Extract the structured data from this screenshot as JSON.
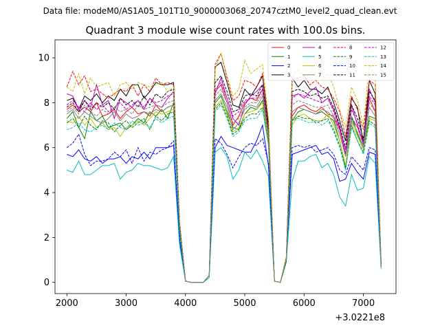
{
  "chart_data": {
    "type": "line",
    "suptitle": "Data file: modeM0/AS1A05_101T10_9000003068_20747cztM0_level2_quad_clean.evt",
    "title": "Quadrant 3 module wise count rates with 100.0s bins.",
    "xlabel": "",
    "ylabel": "",
    "offset_label": "+3.0221e8",
    "xlim": [
      1800,
      7550
    ],
    "ylim": [
      -0.5,
      10.8
    ],
    "xticks": [
      2000,
      3000,
      4000,
      5000,
      6000,
      7000
    ],
    "yticks": [
      0,
      2,
      4,
      6,
      8,
      10
    ],
    "grid": false,
    "legend_position": "top-right",
    "x": [
      2000,
      2100,
      2200,
      2300,
      2400,
      2500,
      2600,
      2700,
      2800,
      2900,
      3000,
      3100,
      3200,
      3300,
      3400,
      3500,
      3600,
      3700,
      3800,
      3900,
      4000,
      4100,
      4200,
      4300,
      4400,
      4500,
      4600,
      4700,
      4800,
      4900,
      5000,
      5100,
      5200,
      5300,
      5400,
      5500,
      5600,
      5700,
      5800,
      5900,
      6000,
      6100,
      6200,
      6300,
      6400,
      6500,
      6600,
      6700,
      6800,
      6900,
      7000,
      7100,
      7200,
      7300
    ],
    "series": [
      {
        "name": "0",
        "color": "#ff0000",
        "dash": false,
        "values": [
          7.7,
          7.9,
          7.6,
          7.8,
          7.6,
          8.0,
          7.4,
          7.5,
          7.7,
          7.3,
          7.6,
          7.8,
          7.5,
          7.6,
          7.4,
          7.9,
          7.6,
          7.8,
          7.9,
          2.5,
          0.05,
          0.0,
          0.0,
          0.0,
          0.3,
          8.5,
          8.8,
          8.0,
          7.0,
          7.4,
          8.0,
          8.2,
          8.1,
          8.6,
          6.8,
          0.05,
          0.0,
          1.0,
          7.4,
          7.8,
          7.9,
          7.7,
          7.6,
          7.8,
          7.5,
          7.4,
          6.8,
          5.7,
          7.3,
          6.9,
          6.3,
          8.2,
          7.6,
          0.7
        ]
      },
      {
        "name": "1",
        "color": "#008000",
        "dash": false,
        "values": [
          7.3,
          7.6,
          6.9,
          6.4,
          7.6,
          7.2,
          7.4,
          6.9,
          7.0,
          7.1,
          6.8,
          7.0,
          7.3,
          7.1,
          7.6,
          7.4,
          7.7,
          7.3,
          8.0,
          2.4,
          0.05,
          0.0,
          0.0,
          0.0,
          0.3,
          8.0,
          8.3,
          7.6,
          6.9,
          6.8,
          7.5,
          7.8,
          7.7,
          8.1,
          6.4,
          0.05,
          0.0,
          1.0,
          7.2,
          7.6,
          7.7,
          7.6,
          7.5,
          7.6,
          7.4,
          7.2,
          6.3,
          5.1,
          7.4,
          6.6,
          6.0,
          7.4,
          7.3,
          0.7
        ]
      },
      {
        "name": "2",
        "color": "#0000ff",
        "dash": false,
        "values": [
          5.7,
          5.6,
          5.9,
          5.5,
          5.4,
          5.6,
          5.3,
          5.5,
          5.5,
          5.6,
          5.3,
          5.6,
          5.5,
          5.8,
          5.5,
          6.0,
          6.0,
          6.0,
          6.1,
          1.9,
          0.05,
          0.0,
          0.0,
          0.0,
          0.3,
          6.0,
          6.5,
          6.1,
          6.0,
          5.9,
          5.8,
          5.8,
          6.3,
          7.0,
          5.2,
          0.05,
          0.0,
          1.0,
          5.7,
          5.8,
          5.9,
          6.0,
          6.1,
          5.7,
          5.8,
          5.5,
          4.5,
          4.6,
          5.3,
          4.9,
          4.6,
          5.8,
          5.7,
          0.7
        ]
      },
      {
        "name": "3",
        "color": "#000000",
        "dash": false,
        "values": [
          8.1,
          8.2,
          7.7,
          8.3,
          8.1,
          8.4,
          8.0,
          8.3,
          8.1,
          8.6,
          8.3,
          8.8,
          8.8,
          8.2,
          8.5,
          8.9,
          8.8,
          8.8,
          8.9,
          2.7,
          0.05,
          0.0,
          0.0,
          0.0,
          0.3,
          9.6,
          9.8,
          8.9,
          7.9,
          7.8,
          8.6,
          8.3,
          8.7,
          9.2,
          7.0,
          0.05,
          0.0,
          1.1,
          9.1,
          8.7,
          9.0,
          8.6,
          8.6,
          8.4,
          8.7,
          8.0,
          7.2,
          6.3,
          8.2,
          7.8,
          6.2,
          9.0,
          8.4,
          0.8
        ]
      },
      {
        "name": "4",
        "color": "#c000c0",
        "dash": false,
        "values": [
          8.4,
          8.3,
          7.7,
          8.1,
          7.8,
          8.8,
          7.9,
          8.1,
          7.3,
          8.2,
          8.0,
          7.8,
          8.1,
          7.7,
          8.2,
          7.9,
          7.8,
          8.2,
          8.5,
          2.6,
          0.05,
          0.0,
          0.0,
          0.0,
          0.3,
          8.4,
          9.1,
          8.2,
          7.3,
          7.0,
          7.9,
          8.3,
          8.5,
          8.8,
          6.6,
          0.05,
          0.0,
          1.0,
          8.3,
          8.4,
          8.2,
          8.5,
          8.7,
          8.0,
          8.2,
          7.7,
          6.9,
          5.7,
          7.9,
          7.0,
          6.1,
          8.6,
          8.0,
          0.7
        ]
      },
      {
        "name": "5",
        "color": "#00c0c0",
        "dash": false,
        "values": [
          5.0,
          4.9,
          5.4,
          4.8,
          4.8,
          5.0,
          5.2,
          5.2,
          5.3,
          4.6,
          4.9,
          5.0,
          5.3,
          5.2,
          5.2,
          5.1,
          5.0,
          5.1,
          5.6,
          1.7,
          0.05,
          0.0,
          0.0,
          0.0,
          0.2,
          5.8,
          6.0,
          5.6,
          4.6,
          5.0,
          5.8,
          5.5,
          5.9,
          5.4,
          4.7,
          0.05,
          0.0,
          0.9,
          4.5,
          5.4,
          5.4,
          5.6,
          5.7,
          5.1,
          5.3,
          4.8,
          3.8,
          3.4,
          4.8,
          4.1,
          4.2,
          5.6,
          5.3,
          0.6
        ]
      },
      {
        "name": "6",
        "color": "#c0c000",
        "dash": false,
        "values": [
          7.2,
          7.1,
          7.4,
          7.0,
          7.3,
          6.9,
          7.1,
          6.8,
          6.9,
          6.5,
          6.9,
          7.0,
          7.2,
          7.0,
          7.3,
          7.6,
          7.5,
          7.6,
          7.7,
          2.3,
          0.05,
          0.0,
          0.0,
          0.0,
          0.3,
          7.8,
          8.1,
          7.5,
          6.7,
          6.9,
          7.5,
          7.6,
          7.7,
          8.0,
          6.3,
          0.05,
          0.0,
          0.9,
          7.0,
          7.4,
          7.5,
          7.3,
          7.2,
          7.2,
          7.5,
          7.0,
          6.3,
          5.2,
          7.1,
          6.5,
          5.9,
          7.3,
          7.2,
          0.7
        ]
      },
      {
        "name": "7",
        "color": "#808080",
        "dash": false,
        "values": [
          7.5,
          7.7,
          7.3,
          7.6,
          7.4,
          7.2,
          7.1,
          7.3,
          7.6,
          7.2,
          7.5,
          7.3,
          7.4,
          7.6,
          7.5,
          7.7,
          7.6,
          7.8,
          7.9,
          2.5,
          0.05,
          0.0,
          0.0,
          0.0,
          0.3,
          8.1,
          8.4,
          7.8,
          6.8,
          7.1,
          7.7,
          7.9,
          7.8,
          8.3,
          6.5,
          0.05,
          0.0,
          1.0,
          7.6,
          7.8,
          7.7,
          7.6,
          7.5,
          7.7,
          7.6,
          7.3,
          6.6,
          5.6,
          7.2,
          6.7,
          6.0,
          7.8,
          7.4,
          0.7
        ]
      },
      {
        "name": "8",
        "color": "#ff0000",
        "dash": true,
        "values": [
          8.7,
          9.4,
          8.8,
          9.2,
          8.5,
          8.6,
          8.4,
          8.2,
          8.4,
          8.6,
          8.5,
          8.8,
          8.3,
          8.8,
          8.5,
          9.1,
          8.8,
          8.9,
          8.8,
          2.7,
          0.05,
          0.0,
          0.0,
          0.0,
          0.3,
          9.7,
          10.2,
          9.1,
          8.1,
          8.3,
          9.0,
          8.9,
          8.7,
          9.3,
          7.2,
          0.05,
          0.0,
          1.1,
          9.0,
          9.1,
          9.2,
          8.8,
          9.0,
          8.7,
          8.6,
          8.2,
          7.6,
          6.5,
          8.3,
          7.7,
          6.8,
          9.0,
          8.8,
          0.8
        ]
      },
      {
        "name": "9",
        "color": "#008000",
        "dash": true,
        "values": [
          7.1,
          7.3,
          6.9,
          7.4,
          7.0,
          6.8,
          7.2,
          7.1,
          6.7,
          7.0,
          7.2,
          6.9,
          7.1,
          7.3,
          6.8,
          7.4,
          7.2,
          7.5,
          7.6,
          2.3,
          0.05,
          0.0,
          0.0,
          0.0,
          0.3,
          7.7,
          8.0,
          7.4,
          6.6,
          6.8,
          7.3,
          7.5,
          7.5,
          7.8,
          6.2,
          0.05,
          0.0,
          0.9,
          7.2,
          7.4,
          7.3,
          7.3,
          7.1,
          7.2,
          7.3,
          6.8,
          6.1,
          5.0,
          7.0,
          6.3,
          5.8,
          7.2,
          7.0,
          0.7
        ]
      },
      {
        "name": "10",
        "color": "#0000ff",
        "dash": true,
        "values": [
          6.0,
          6.2,
          6.6,
          5.7,
          5.2,
          5.4,
          5.4,
          5.5,
          5.8,
          5.6,
          5.9,
          5.3,
          6.0,
          5.4,
          5.8,
          5.7,
          5.9,
          6.0,
          6.3,
          2.0,
          0.05,
          0.0,
          0.0,
          0.0,
          0.3,
          6.4,
          6.2,
          5.7,
          5.1,
          5.6,
          6.0,
          6.2,
          6.1,
          6.4,
          5.3,
          0.05,
          0.0,
          1.0,
          6.0,
          6.1,
          6.0,
          6.1,
          5.8,
          5.9,
          6.0,
          5.7,
          5.0,
          4.8,
          5.6,
          5.3,
          5.0,
          6.0,
          5.9,
          0.7
        ]
      },
      {
        "name": "11",
        "color": "#000000",
        "dash": true,
        "values": [
          7.8,
          8.0,
          7.6,
          8.1,
          7.7,
          8.0,
          7.8,
          8.0,
          7.7,
          8.2,
          7.9,
          8.1,
          7.8,
          8.3,
          7.9,
          8.4,
          8.2,
          8.5,
          8.6,
          2.6,
          0.05,
          0.0,
          0.0,
          0.0,
          0.3,
          8.9,
          9.2,
          8.5,
          7.6,
          7.7,
          8.3,
          8.4,
          8.3,
          8.8,
          6.8,
          0.05,
          0.0,
          1.0,
          8.5,
          8.6,
          8.5,
          8.3,
          8.4,
          8.2,
          8.3,
          7.8,
          7.0,
          6.0,
          7.9,
          7.3,
          6.4,
          8.5,
          8.1,
          0.8
        ]
      },
      {
        "name": "12",
        "color": "#c000c0",
        "dash": true,
        "values": [
          7.9,
          8.1,
          7.8,
          7.6,
          8.0,
          7.7,
          7.9,
          7.6,
          7.8,
          8.0,
          7.7,
          7.9,
          8.1,
          7.8,
          8.2,
          8.0,
          8.1,
          8.3,
          8.4,
          2.6,
          0.05,
          0.0,
          0.0,
          0.0,
          0.3,
          8.6,
          8.9,
          8.2,
          7.4,
          7.6,
          8.1,
          8.2,
          8.2,
          8.6,
          6.7,
          0.05,
          0.0,
          1.0,
          8.2,
          8.4,
          8.3,
          8.2,
          8.1,
          8.0,
          8.2,
          7.6,
          6.8,
          5.9,
          7.7,
          7.1,
          6.2,
          8.3,
          7.9,
          0.8
        ]
      },
      {
        "name": "13",
        "color": "#00c0c0",
        "dash": true,
        "values": [
          6.8,
          6.9,
          7.1,
          6.8,
          6.7,
          6.9,
          7.0,
          6.8,
          7.1,
          6.9,
          6.8,
          7.2,
          7.0,
          7.1,
          6.9,
          7.3,
          7.1,
          7.3,
          7.4,
          2.3,
          0.05,
          0.0,
          0.0,
          0.0,
          0.3,
          7.6,
          7.9,
          7.3,
          6.5,
          6.7,
          7.2,
          7.3,
          7.3,
          7.7,
          6.1,
          0.05,
          0.0,
          0.9,
          7.2,
          7.3,
          7.2,
          7.1,
          7.2,
          7.0,
          7.2,
          6.7,
          6.0,
          5.0,
          6.9,
          6.3,
          5.7,
          7.1,
          6.9,
          0.7
        ]
      },
      {
        "name": "14",
        "color": "#c0c000",
        "dash": true,
        "values": [
          8.7,
          8.5,
          9.3,
          8.4,
          9.1,
          8.7,
          8.8,
          8.9,
          8.3,
          8.8,
          8.9,
          8.6,
          8.9,
          8.8,
          8.7,
          8.8,
          8.9,
          8.5,
          8.7,
          2.7,
          0.05,
          0.0,
          0.0,
          0.0,
          0.3,
          9.5,
          10.2,
          9.2,
          8.3,
          8.6,
          9.9,
          9.3,
          9.5,
          9.7,
          7.3,
          0.05,
          0.0,
          1.1,
          9.1,
          9.5,
          9.2,
          9.3,
          9.8,
          9.0,
          9.3,
          8.7,
          7.7,
          6.9,
          8.7,
          8.1,
          7.0,
          9.7,
          9.2,
          0.9
        ]
      },
      {
        "name": "15",
        "color": "#808080",
        "dash": true,
        "values": [
          7.6,
          7.8,
          7.5,
          7.9,
          7.6,
          7.4,
          7.7,
          7.5,
          7.8,
          7.6,
          7.7,
          7.5,
          7.9,
          7.7,
          7.8,
          7.9,
          7.8,
          8.0,
          8.1,
          2.5,
          0.05,
          0.0,
          0.0,
          0.0,
          0.3,
          8.3,
          8.6,
          8.0,
          7.1,
          7.3,
          7.8,
          8.0,
          8.0,
          8.4,
          6.6,
          0.05,
          0.0,
          1.0,
          7.9,
          8.1,
          8.0,
          7.9,
          7.8,
          7.8,
          7.9,
          7.4,
          6.6,
          5.6,
          7.4,
          6.9,
          6.1,
          8.0,
          7.6,
          0.7
        ]
      }
    ]
  }
}
